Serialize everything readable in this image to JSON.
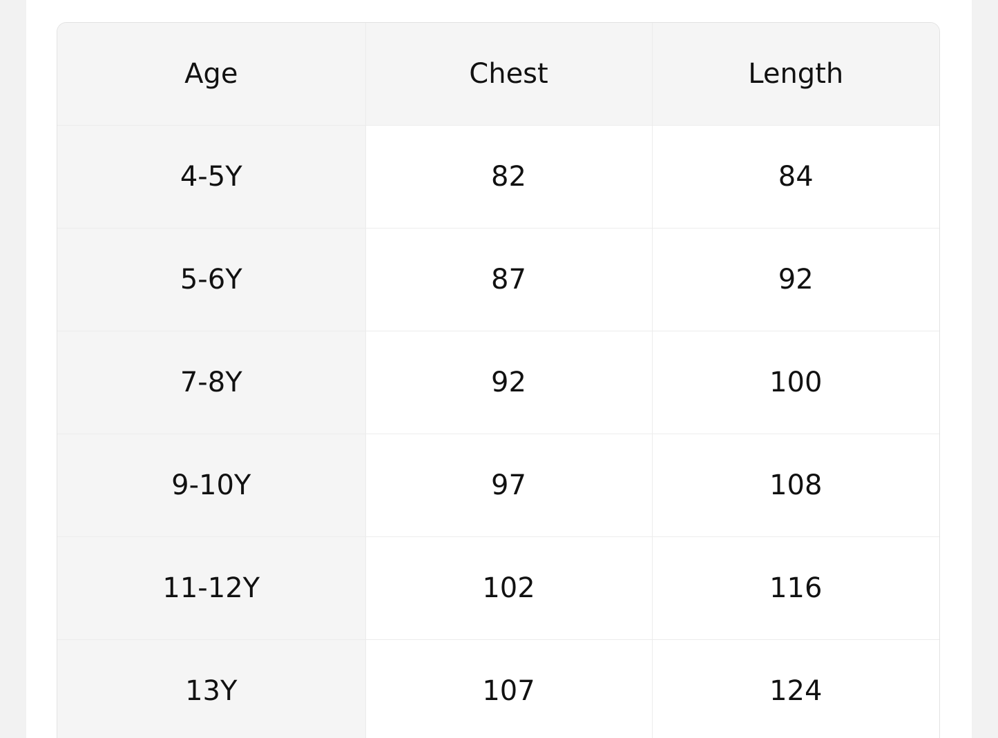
{
  "table": {
    "header": [
      "Age",
      "Chest",
      "Length"
    ],
    "rows": [
      [
        "4-5Y",
        82,
        84
      ],
      [
        "5-6Y",
        87,
        92
      ],
      [
        "7-8Y",
        92,
        100
      ],
      [
        "9-10Y",
        97,
        108
      ],
      [
        "11-12Y",
        102,
        116
      ],
      [
        "13Y",
        107,
        124
      ]
    ]
  }
}
